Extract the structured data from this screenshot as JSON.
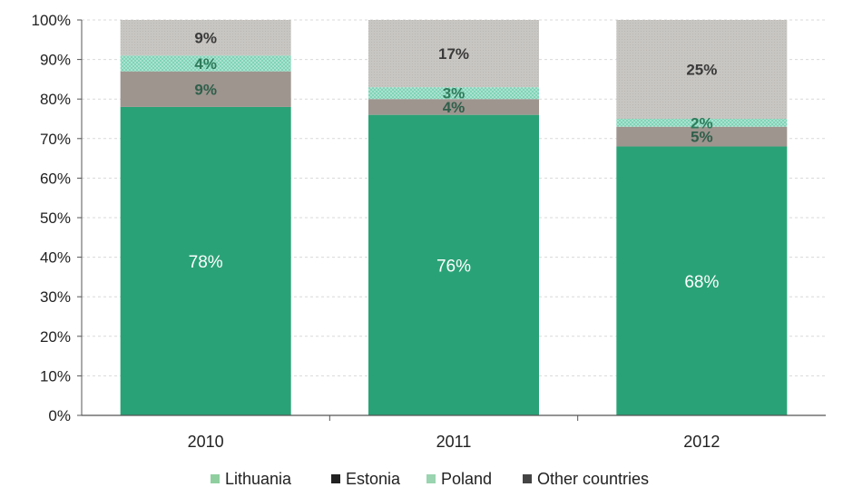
{
  "chart_data": {
    "type": "bar",
    "stacked": true,
    "categories": [
      "2010",
      "2011",
      "2012"
    ],
    "series": [
      {
        "name": "Lithuania",
        "values": [
          78,
          76,
          68
        ],
        "labels": [
          "78%",
          "76%",
          "68%"
        ],
        "color": "#2aa277",
        "label_color": "#ffffff"
      },
      {
        "name": "Estonia",
        "values": [
          9,
          4,
          5
        ],
        "labels": [
          "9%",
          "4%",
          "5%"
        ],
        "color": "#9e958f",
        "label_color": "#2f5f4a"
      },
      {
        "name": "Poland",
        "values": [
          4,
          3,
          2
        ],
        "labels": [
          "4%",
          "3%",
          "2%"
        ],
        "color": "#7fd4b8",
        "label_color": "#2f7a5a"
      },
      {
        "name": "Other countries",
        "values": [
          9,
          17,
          25
        ],
        "labels": [
          "9%",
          "17%",
          "25%"
        ],
        "color": "#c8c6c2",
        "label_color": "#3a3a3a"
      }
    ],
    "y_ticks": [
      "0%",
      "10%",
      "20%",
      "30%",
      "40%",
      "50%",
      "60%",
      "70%",
      "80%",
      "90%",
      "100%"
    ],
    "ylim": [
      0,
      100
    ],
    "grid": true,
    "legend_position": "bottom",
    "colors": {
      "legend_lithuania": "#8fcf9f",
      "legend_estonia": "#222222",
      "legend_poland": "#9ad4b0",
      "legend_other": "#444444",
      "axis": "#555555",
      "grid": "#d9d9d9",
      "text": "#222222"
    }
  }
}
